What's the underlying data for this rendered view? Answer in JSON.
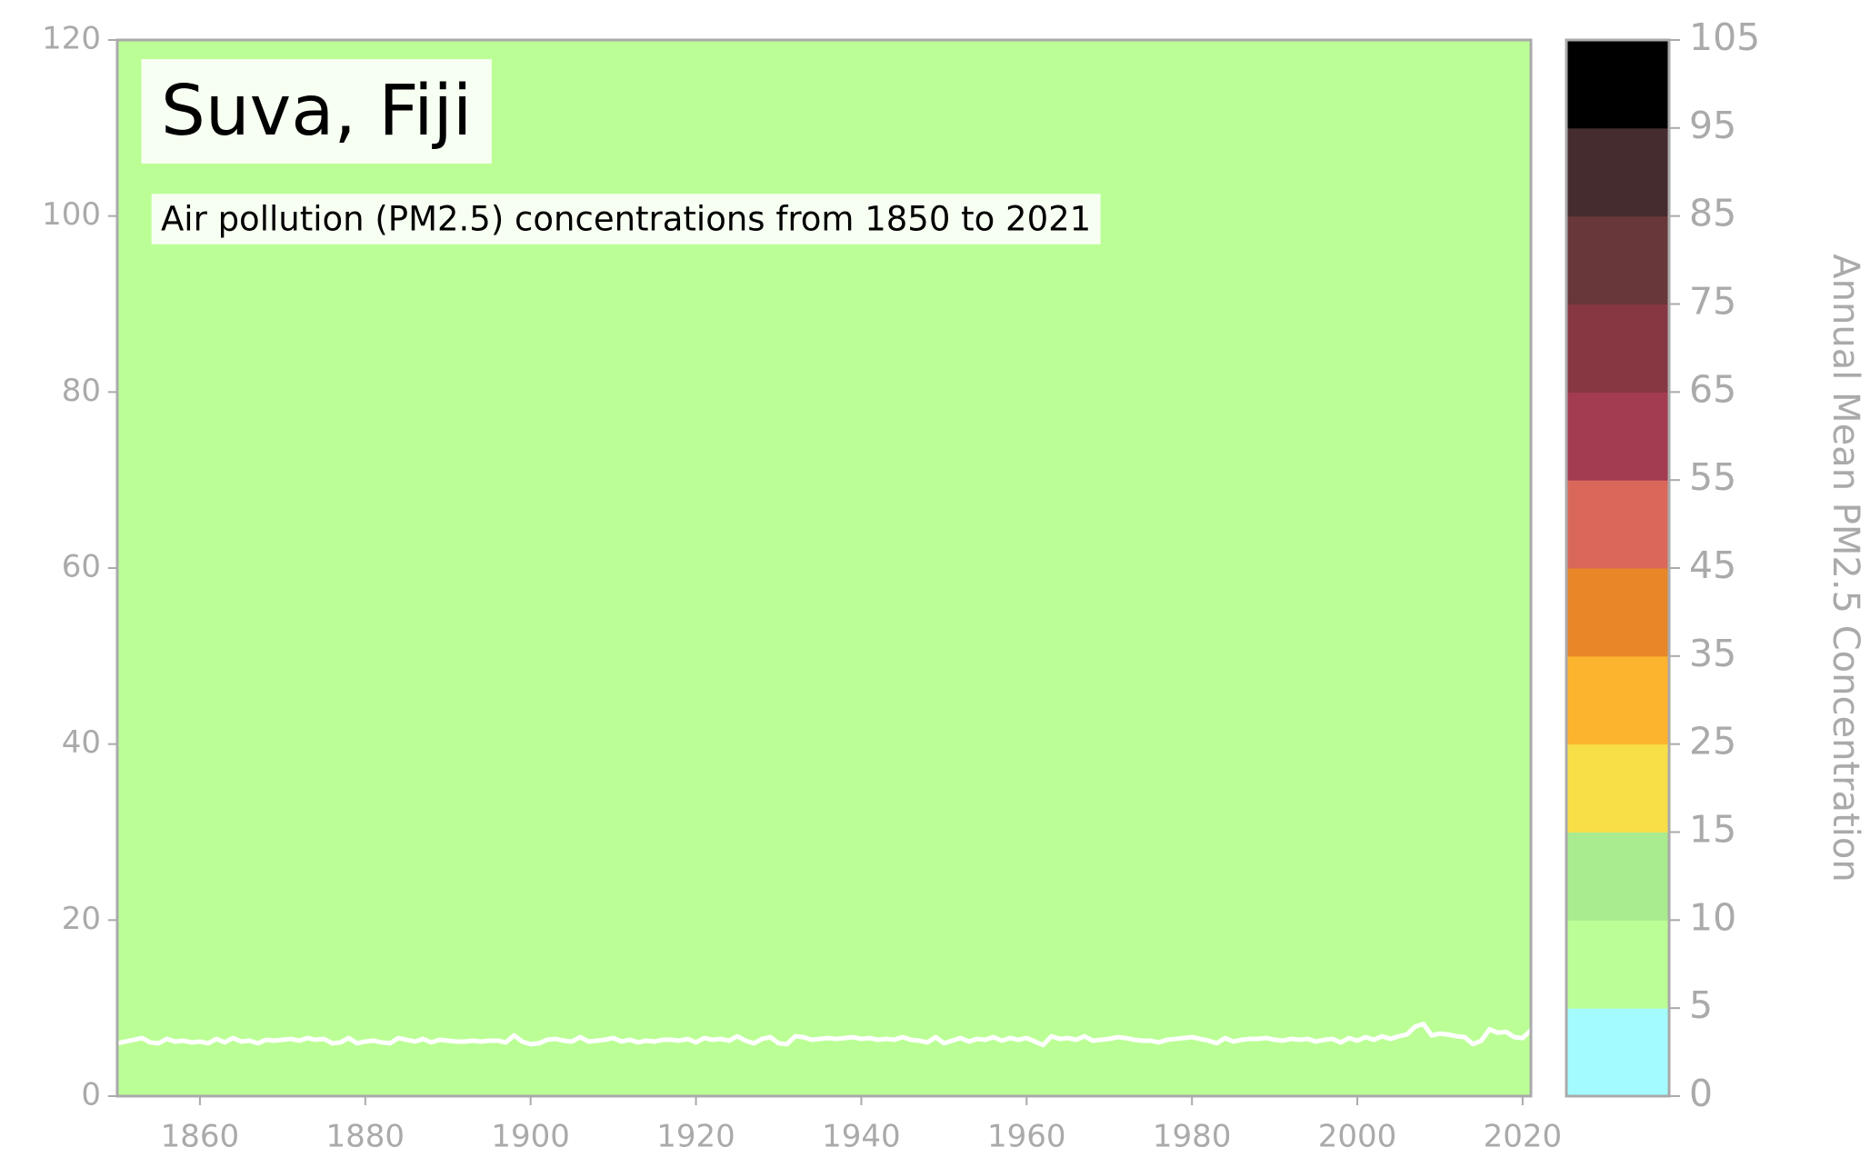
{
  "chart_data": {
    "type": "line",
    "title": "Suva, Fiji",
    "subtitle": "Air pollution (PM2.5) concentrations from 1850 to 2021",
    "x": [
      1850,
      1851,
      1852,
      1853,
      1854,
      1855,
      1856,
      1857,
      1858,
      1859,
      1860,
      1861,
      1862,
      1863,
      1864,
      1865,
      1866,
      1867,
      1868,
      1869,
      1870,
      1871,
      1872,
      1873,
      1874,
      1875,
      1876,
      1877,
      1878,
      1879,
      1880,
      1881,
      1882,
      1883,
      1884,
      1885,
      1886,
      1887,
      1888,
      1889,
      1890,
      1891,
      1892,
      1893,
      1894,
      1895,
      1896,
      1897,
      1898,
      1899,
      1900,
      1901,
      1902,
      1903,
      1904,
      1905,
      1906,
      1907,
      1908,
      1909,
      1910,
      1911,
      1912,
      1913,
      1914,
      1915,
      1916,
      1917,
      1918,
      1919,
      1920,
      1921,
      1922,
      1923,
      1924,
      1925,
      1926,
      1927,
      1928,
      1929,
      1930,
      1931,
      1932,
      1933,
      1934,
      1935,
      1936,
      1937,
      1938,
      1939,
      1940,
      1941,
      1942,
      1943,
      1944,
      1945,
      1946,
      1947,
      1948,
      1949,
      1950,
      1951,
      1952,
      1953,
      1954,
      1955,
      1956,
      1957,
      1958,
      1959,
      1960,
      1961,
      1962,
      1963,
      1964,
      1965,
      1966,
      1967,
      1968,
      1969,
      1970,
      1971,
      1972,
      1973,
      1974,
      1975,
      1976,
      1977,
      1978,
      1979,
      1980,
      1981,
      1982,
      1983,
      1984,
      1985,
      1986,
      1987,
      1988,
      1989,
      1990,
      1991,
      1992,
      1993,
      1994,
      1995,
      1996,
      1997,
      1998,
      1999,
      2000,
      2001,
      2002,
      2003,
      2004,
      2005,
      2006,
      2007,
      2008,
      2009,
      2010,
      2011,
      2012,
      2013,
      2014,
      2015,
      2016,
      2017,
      2018,
      2019,
      2020,
      2021
    ],
    "values": [
      6.0,
      6.2,
      6.4,
      6.6,
      6.1,
      6.0,
      6.5,
      6.2,
      6.3,
      6.1,
      6.2,
      6.0,
      6.5,
      6.1,
      6.6,
      6.2,
      6.3,
      6.0,
      6.4,
      6.3,
      6.4,
      6.5,
      6.3,
      6.6,
      6.4,
      6.5,
      6.0,
      6.1,
      6.6,
      6.0,
      6.2,
      6.3,
      6.1,
      6.0,
      6.6,
      6.4,
      6.2,
      6.5,
      6.1,
      6.4,
      6.3,
      6.2,
      6.2,
      6.3,
      6.2,
      6.3,
      6.3,
      6.1,
      6.9,
      6.2,
      5.9,
      6.0,
      6.4,
      6.5,
      6.3,
      6.2,
      6.7,
      6.2,
      6.3,
      6.4,
      6.6,
      6.2,
      6.4,
      6.1,
      6.3,
      6.2,
      6.4,
      6.4,
      6.3,
      6.5,
      6.1,
      6.6,
      6.4,
      6.5,
      6.3,
      6.8,
      6.3,
      6.0,
      6.5,
      6.7,
      6.0,
      5.9,
      6.8,
      6.7,
      6.4,
      6.5,
      6.6,
      6.5,
      6.6,
      6.7,
      6.5,
      6.6,
      6.4,
      6.5,
      6.4,
      6.7,
      6.4,
      6.3,
      6.1,
      6.7,
      6.0,
      6.3,
      6.6,
      6.2,
      6.5,
      6.4,
      6.7,
      6.3,
      6.6,
      6.4,
      6.6,
      6.2,
      5.8,
      6.8,
      6.5,
      6.6,
      6.4,
      6.8,
      6.3,
      6.4,
      6.5,
      6.7,
      6.6,
      6.4,
      6.3,
      6.3,
      6.1,
      6.4,
      6.5,
      6.6,
      6.7,
      6.5,
      6.3,
      6.0,
      6.6,
      6.2,
      6.4,
      6.5,
      6.5,
      6.6,
      6.4,
      6.3,
      6.5,
      6.4,
      6.5,
      6.2,
      6.4,
      6.5,
      6.1,
      6.6,
      6.3,
      6.7,
      6.4,
      6.8,
      6.5,
      6.8,
      7.0,
      7.9,
      8.2,
      6.9,
      7.1,
      7.0,
      6.8,
      6.7,
      5.9,
      6.3,
      7.6,
      7.2,
      7.3,
      6.7,
      6.6,
      7.5
    ],
    "color": "#ffffff",
    "background": "#bcfe96",
    "xlim": [
      1850,
      2021
    ],
    "xticks": [
      1860,
      1880,
      1900,
      1920,
      1940,
      1960,
      1980,
      2000,
      2020
    ],
    "ylim": [
      0,
      120
    ],
    "yticks": [
      0,
      20,
      40,
      60,
      80,
      100,
      120
    ],
    "colorbar": {
      "label": "Annual Mean PM2.5 Concentration",
      "ticks": [
        0,
        5,
        10,
        15,
        25,
        35,
        45,
        55,
        65,
        75,
        85,
        95,
        105
      ],
      "colors": [
        "#a4fbff",
        "#bcfe96",
        "#a9eb8f",
        "#f8df48",
        "#fcb32e",
        "#e88628",
        "#da685a",
        "#a33b51",
        "#873742",
        "#68373a",
        "#452c2f",
        "#000000"
      ]
    }
  }
}
